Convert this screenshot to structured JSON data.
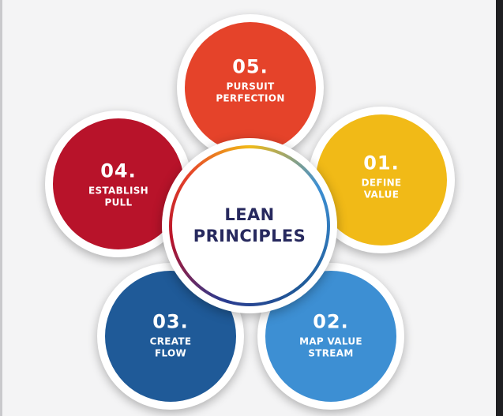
{
  "center": {
    "line1": "LEAN",
    "line2": "PRINCIPLES"
  },
  "petals": [
    {
      "number": "01.",
      "line1": "DEFINE",
      "line2": "VALUE",
      "color": "#f1ba17"
    },
    {
      "number": "02.",
      "line1": "MAP VALUE",
      "line2": "STREAM",
      "color": "#3d8fd3"
    },
    {
      "number": "03.",
      "line1": "CREATE",
      "line2": "FLOW",
      "color": "#1f5a98"
    },
    {
      "number": "04.",
      "line1": "ESTABLISH",
      "line2": "PULL",
      "color": "#b8132a"
    },
    {
      "number": "05.",
      "line1": "PURSUIT",
      "line2": "PERFECTION",
      "color": "#e5432a"
    }
  ]
}
